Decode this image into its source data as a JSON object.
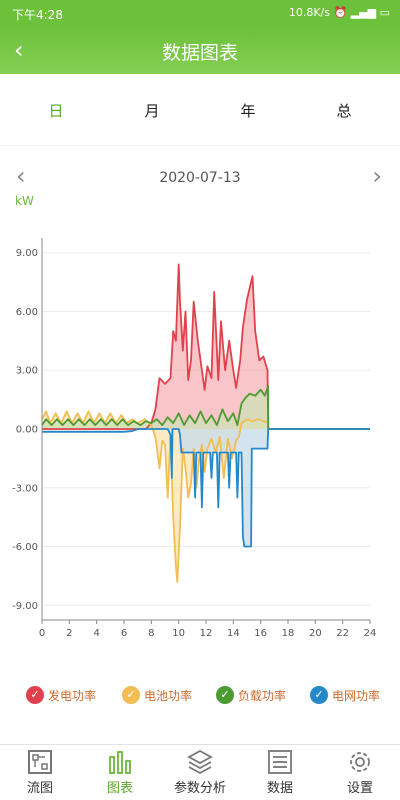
{
  "status": {
    "time": "下午4:28",
    "network": "10.8K/s"
  },
  "header": {
    "title": "数据图表"
  },
  "tabs": [
    {
      "label": "日",
      "active": true
    },
    {
      "label": "月",
      "active": false
    },
    {
      "label": "年",
      "active": false
    },
    {
      "label": "总",
      "active": false
    }
  ],
  "date": "2020-07-13",
  "unit": "kW",
  "chart_data": {
    "type": "area",
    "xlim": [
      0,
      24
    ],
    "ylim": [
      -9.75,
      9.75
    ],
    "x_ticks": [
      0,
      2,
      4,
      6,
      8,
      10,
      12,
      14,
      16,
      18,
      20,
      22,
      24
    ],
    "y_ticks": [
      "9.00",
      "6.00",
      "3.00",
      "0.00",
      "-3.00",
      "-6.00",
      "-9.00"
    ],
    "y_tick_values": [
      9,
      6,
      3,
      0,
      -3,
      -6,
      -9
    ],
    "grid": true,
    "legend_position": "bottom",
    "series": [
      {
        "name": "发电功率",
        "color": "#e0414d",
        "fill": "#f6b2b5",
        "points": [
          [
            0,
            0
          ],
          [
            7.6,
            0
          ],
          [
            8,
            0.3
          ],
          [
            8.3,
            1
          ],
          [
            8.6,
            2.6
          ],
          [
            9,
            2.3
          ],
          [
            9.4,
            2.6
          ],
          [
            9.6,
            5
          ],
          [
            9.8,
            4.5
          ],
          [
            10,
            8.4
          ],
          [
            10.1,
            6.5
          ],
          [
            10.3,
            4
          ],
          [
            10.5,
            6
          ],
          [
            10.7,
            2.5
          ],
          [
            10.9,
            3.5
          ],
          [
            11.1,
            6.5
          ],
          [
            11.4,
            4.5
          ],
          [
            11.7,
            3
          ],
          [
            11.9,
            2
          ],
          [
            12.1,
            3.2
          ],
          [
            12.4,
            2.6
          ],
          [
            12.6,
            7
          ],
          [
            12.9,
            2.5
          ],
          [
            13.1,
            5.5
          ],
          [
            13.4,
            3
          ],
          [
            13.7,
            4.5
          ],
          [
            14,
            3
          ],
          [
            14.2,
            2.1
          ],
          [
            14.5,
            3.5
          ],
          [
            14.7,
            5.2
          ],
          [
            15,
            6.6
          ],
          [
            15.2,
            7.2
          ],
          [
            15.4,
            7.8
          ],
          [
            15.6,
            5
          ],
          [
            15.9,
            3.5
          ],
          [
            16.2,
            3.7
          ],
          [
            16.5,
            3
          ],
          [
            16.55,
            0
          ],
          [
            24,
            0
          ]
        ]
      },
      {
        "name": "电池功率",
        "color": "#f2bd52",
        "fill": "#fbe3b2",
        "points": [
          [
            0,
            0.5
          ],
          [
            0.3,
            0.9
          ],
          [
            0.6,
            0.3
          ],
          [
            1,
            0.8
          ],
          [
            1.4,
            0.3
          ],
          [
            1.8,
            0.9
          ],
          [
            2.2,
            0.3
          ],
          [
            2.6,
            0.8
          ],
          [
            3,
            0.3
          ],
          [
            3.4,
            0.9
          ],
          [
            3.8,
            0.3
          ],
          [
            4.2,
            0.8
          ],
          [
            4.6,
            0.3
          ],
          [
            5,
            0.8
          ],
          [
            5.4,
            0.3
          ],
          [
            5.8,
            0.7
          ],
          [
            6.2,
            0.3
          ],
          [
            6.6,
            0.5
          ],
          [
            7,
            0.3
          ],
          [
            7.5,
            0.5
          ],
          [
            8,
            0.2
          ],
          [
            8.3,
            -0.4
          ],
          [
            8.6,
            -2
          ],
          [
            8.8,
            -0.6
          ],
          [
            9,
            -0.8
          ],
          [
            9.2,
            -3.5
          ],
          [
            9.4,
            -0.3
          ],
          [
            9.6,
            -4.5
          ],
          [
            9.8,
            -7
          ],
          [
            9.9,
            -7.8
          ],
          [
            10.1,
            -5
          ],
          [
            10.3,
            -1
          ],
          [
            10.5,
            -2
          ],
          [
            10.7,
            -3.5
          ],
          [
            10.9,
            -2.8
          ],
          [
            11.1,
            -1
          ],
          [
            11.3,
            -3
          ],
          [
            11.5,
            -1.5
          ],
          [
            11.7,
            -0.8
          ],
          [
            11.9,
            -2.2
          ],
          [
            12.1,
            -1
          ],
          [
            12.4,
            -0.5
          ],
          [
            12.7,
            -1.2
          ],
          [
            13,
            -0.4
          ],
          [
            13.3,
            -2.5
          ],
          [
            13.6,
            -0.5
          ],
          [
            13.9,
            -1.5
          ],
          [
            14.2,
            -0.6
          ],
          [
            14.4,
            -0.4
          ],
          [
            14.6,
            0.3
          ],
          [
            15,
            0.5
          ],
          [
            15.4,
            0.4
          ],
          [
            15.8,
            0.5
          ],
          [
            16.2,
            0.4
          ],
          [
            16.55,
            0.3
          ],
          [
            16.56,
            0
          ],
          [
            24,
            0
          ]
        ]
      },
      {
        "name": "负载功率",
        "color": "#4e9a33",
        "fill": "#cde0b7",
        "points": [
          [
            0,
            0.2
          ],
          [
            0.3,
            0.5
          ],
          [
            0.7,
            0.2
          ],
          [
            1.1,
            0.5
          ],
          [
            1.5,
            0.2
          ],
          [
            1.9,
            0.5
          ],
          [
            2.3,
            0.2
          ],
          [
            2.7,
            0.5
          ],
          [
            3.1,
            0.2
          ],
          [
            3.5,
            0.5
          ],
          [
            3.9,
            0.2
          ],
          [
            4.3,
            0.5
          ],
          [
            4.7,
            0.2
          ],
          [
            5.1,
            0.5
          ],
          [
            5.5,
            0.2
          ],
          [
            5.9,
            0.5
          ],
          [
            6.3,
            0.2
          ],
          [
            6.7,
            0.4
          ],
          [
            7.2,
            0.2
          ],
          [
            7.6,
            0.4
          ],
          [
            8,
            0.3
          ],
          [
            8.4,
            0.5
          ],
          [
            8.8,
            0.2
          ],
          [
            9.2,
            0.6
          ],
          [
            9.6,
            0.3
          ],
          [
            10,
            0.8
          ],
          [
            10.4,
            0.2
          ],
          [
            10.8,
            0.7
          ],
          [
            11.2,
            0.3
          ],
          [
            11.6,
            0.9
          ],
          [
            12,
            0.3
          ],
          [
            12.4,
            0.7
          ],
          [
            12.8,
            0.2
          ],
          [
            13.2,
            1
          ],
          [
            13.6,
            0.4
          ],
          [
            14,
            0.8
          ],
          [
            14.3,
            0.2
          ],
          [
            14.6,
            1.3
          ],
          [
            14.9,
            1.6
          ],
          [
            15.2,
            1.8
          ],
          [
            15.6,
            1.7
          ],
          [
            16,
            2
          ],
          [
            16.3,
            1.7
          ],
          [
            16.55,
            2.2
          ],
          [
            16.56,
            0
          ],
          [
            24,
            0
          ]
        ]
      },
      {
        "name": "电网功率",
        "color": "#2588c7",
        "fill": "#c6dbe8",
        "points": [
          [
            0,
            -0.15
          ],
          [
            6,
            -0.15
          ],
          [
            6.6,
            -0.1
          ],
          [
            7,
            0
          ],
          [
            7.4,
            0
          ],
          [
            7.8,
            0
          ],
          [
            8.4,
            0
          ],
          [
            9.2,
            0
          ],
          [
            9.4,
            -0.3
          ],
          [
            9.5,
            -2.5
          ],
          [
            9.55,
            0
          ],
          [
            10,
            0
          ],
          [
            10.1,
            -0.3
          ],
          [
            10.2,
            -1.2
          ],
          [
            11.1,
            -1.2
          ],
          [
            11.2,
            -3.5
          ],
          [
            11.3,
            -1.2
          ],
          [
            11.6,
            -1.2
          ],
          [
            11.7,
            -4
          ],
          [
            11.8,
            -1.2
          ],
          [
            12.3,
            -1.2
          ],
          [
            12.4,
            -2.5
          ],
          [
            12.5,
            -1.2
          ],
          [
            12.8,
            -1.2
          ],
          [
            12.9,
            -4
          ],
          [
            13,
            -1.2
          ],
          [
            13.6,
            -1.2
          ],
          [
            13.7,
            -3
          ],
          [
            13.8,
            -1.2
          ],
          [
            14.2,
            -1.2
          ],
          [
            14.3,
            -3.5
          ],
          [
            14.4,
            -1.2
          ],
          [
            14.6,
            -1.2
          ],
          [
            14.7,
            -5.5
          ],
          [
            14.8,
            -6
          ],
          [
            15.3,
            -6
          ],
          [
            15.35,
            -1
          ],
          [
            16.5,
            -1
          ],
          [
            16.55,
            0
          ],
          [
            24,
            0
          ]
        ]
      }
    ]
  },
  "legend": [
    {
      "label": "发电功率",
      "color": "#e0414d"
    },
    {
      "label": "电池功率",
      "color": "#f2bd52"
    },
    {
      "label": "负载功率",
      "color": "#4e9a33"
    },
    {
      "label": "电网功率",
      "color": "#2588c7"
    }
  ],
  "nav": [
    {
      "label": "流图",
      "icon": "flow-diagram-icon",
      "active": false
    },
    {
      "label": "图表",
      "icon": "bar-chart-icon",
      "active": true
    },
    {
      "label": "参数分析",
      "icon": "layers-icon",
      "active": false
    },
    {
      "label": "数据",
      "icon": "list-icon",
      "active": false
    },
    {
      "label": "设置",
      "icon": "gear-icon",
      "active": false
    }
  ]
}
